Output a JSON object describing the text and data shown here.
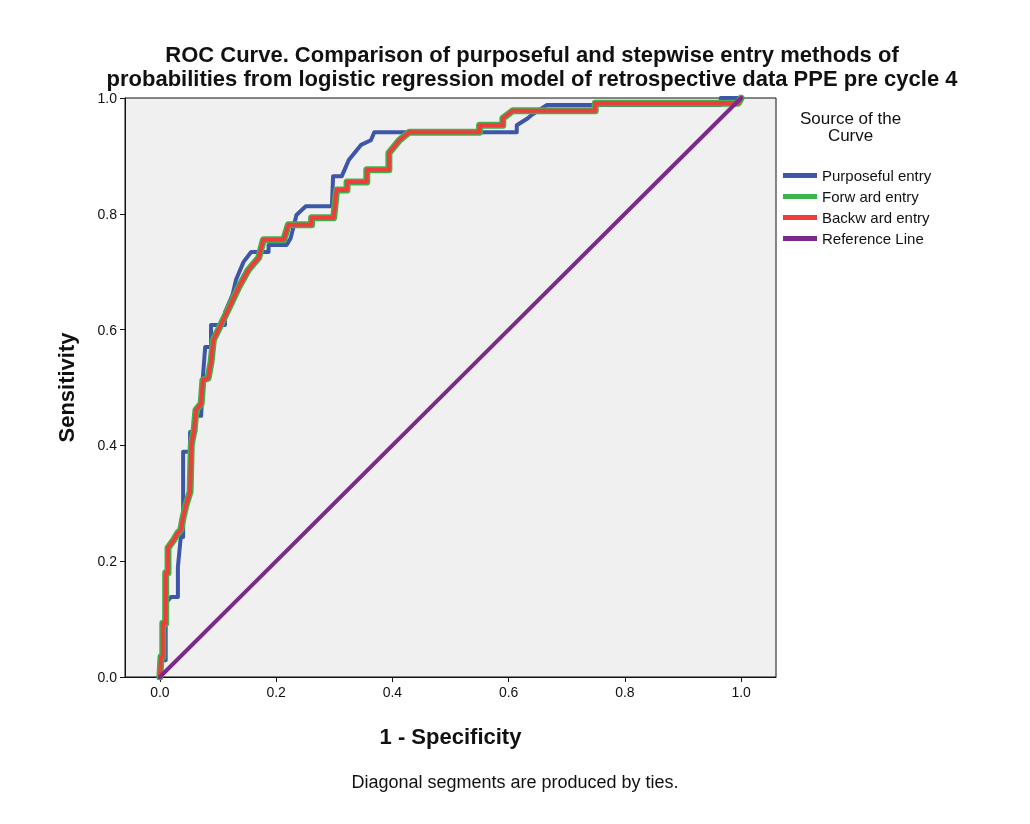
{
  "chart_data": {
    "type": "line",
    "title": "ROC Curve. Comparison of purposeful and stepwise entry methods of\nprobabilities from logistic regression model of retrospective data PPE pre cycle 4",
    "xlabel": "1 - Specificity",
    "ylabel": "Sensitivity",
    "legend_title": "Source of the\nCurve",
    "legend": "top right",
    "grid": false,
    "marker": "none",
    "line_style": "solid",
    "xlim": [
      -0.06,
      1.06
    ],
    "ylim": [
      0,
      1
    ],
    "xticks": [
      {
        "value": 0,
        "label": "0.0"
      },
      {
        "value": 0.2,
        "label": "0.2"
      },
      {
        "value": 0.4,
        "label": "0.4"
      },
      {
        "value": 0.6,
        "label": "0.6"
      },
      {
        "value": 0.8,
        "label": "0.8"
      },
      {
        "value": 1,
        "label": "1.0"
      }
    ],
    "yticks": [
      {
        "value": 0,
        "label": "0.0"
      },
      {
        "value": 0.2,
        "label": "0.2"
      },
      {
        "value": 0.4,
        "label": "0.4"
      },
      {
        "value": 0.6,
        "label": "0.6"
      },
      {
        "value": 0.8,
        "label": "0.8"
      },
      {
        "value": 1,
        "label": "1.0"
      }
    ],
    "annotations": [
      "Diagonal segments are produced by ties."
    ],
    "series": [
      {
        "name": "Purposeful entry",
        "color": "#3e56a8",
        "x": [
          0,
          0,
          0.01,
          0.01,
          0.019,
          0.031,
          0.031,
          0.036,
          0.04,
          0.04,
          0.052,
          0.052,
          0.061,
          0.061,
          0.071,
          0.074,
          0.078,
          0.088,
          0.088,
          0.112,
          0.112,
          0.125,
          0.131,
          0.144,
          0.157,
          0.187,
          0.187,
          0.218,
          0.225,
          0.235,
          0.251,
          0.296,
          0.298,
          0.313,
          0.325,
          0.346,
          0.363,
          0.369,
          0.614,
          0.614,
          0.633,
          0.64,
          0.666,
          0.965,
          0.965,
          1
        ],
        "values": [
          0,
          0.029,
          0.029,
          0.128,
          0.138,
          0.138,
          0.19,
          0.242,
          0.242,
          0.389,
          0.389,
          0.423,
          0.423,
          0.451,
          0.451,
          0.518,
          0.57,
          0.57,
          0.608,
          0.608,
          0.63,
          0.66,
          0.686,
          0.717,
          0.734,
          0.734,
          0.746,
          0.746,
          0.758,
          0.798,
          0.813,
          0.813,
          0.865,
          0.865,
          0.893,
          0.919,
          0.927,
          0.941,
          0.941,
          0.953,
          0.965,
          0.971,
          0.988,
          0.988,
          1,
          1
        ]
      },
      {
        "name": "Forw ard entry",
        "color": "#3cb44a",
        "x": [
          0,
          0.002,
          0.005,
          0.005,
          0.01,
          0.01,
          0.014,
          0.014,
          0.024,
          0.031,
          0.036,
          0.04,
          0.045,
          0.052,
          0.054,
          0.059,
          0.062,
          0.071,
          0.074,
          0.083,
          0.088,
          0.092,
          0.109,
          0.121,
          0.135,
          0.152,
          0.17,
          0.178,
          0.213,
          0.221,
          0.261,
          0.261,
          0.299,
          0.304,
          0.322,
          0.322,
          0.356,
          0.356,
          0.394,
          0.394,
          0.412,
          0.429,
          0.55,
          0.55,
          0.59,
          0.59,
          0.607,
          0.749,
          0.749,
          0.995,
          1
        ],
        "values": [
          0,
          0.035,
          0.035,
          0.093,
          0.093,
          0.18,
          0.18,
          0.223,
          0.237,
          0.249,
          0.254,
          0.276,
          0.297,
          0.32,
          0.401,
          0.427,
          0.461,
          0.472,
          0.513,
          0.516,
          0.544,
          0.582,
          0.617,
          0.642,
          0.672,
          0.703,
          0.724,
          0.755,
          0.755,
          0.781,
          0.781,
          0.793,
          0.793,
          0.841,
          0.841,
          0.855,
          0.855,
          0.876,
          0.876,
          0.905,
          0.927,
          0.941,
          0.941,
          0.953,
          0.953,
          0.965,
          0.978,
          0.978,
          0.991,
          0.991,
          1
        ]
      },
      {
        "name": "Backw ard entry",
        "color": "#f03c3c",
        "x": [
          0,
          0.002,
          0.005,
          0.005,
          0.01,
          0.01,
          0.014,
          0.014,
          0.024,
          0.031,
          0.036,
          0.04,
          0.045,
          0.052,
          0.054,
          0.059,
          0.062,
          0.071,
          0.074,
          0.083,
          0.088,
          0.092,
          0.109,
          0.121,
          0.135,
          0.152,
          0.17,
          0.178,
          0.213,
          0.221,
          0.261,
          0.261,
          0.299,
          0.304,
          0.322,
          0.322,
          0.356,
          0.356,
          0.394,
          0.394,
          0.412,
          0.429,
          0.55,
          0.55,
          0.59,
          0.59,
          0.607,
          0.749,
          0.749,
          0.995,
          1
        ],
        "values": [
          0,
          0.035,
          0.035,
          0.093,
          0.093,
          0.18,
          0.18,
          0.223,
          0.237,
          0.249,
          0.254,
          0.276,
          0.297,
          0.32,
          0.401,
          0.427,
          0.461,
          0.472,
          0.513,
          0.516,
          0.544,
          0.582,
          0.617,
          0.642,
          0.672,
          0.703,
          0.724,
          0.755,
          0.755,
          0.781,
          0.781,
          0.793,
          0.793,
          0.841,
          0.841,
          0.855,
          0.855,
          0.876,
          0.876,
          0.905,
          0.927,
          0.941,
          0.941,
          0.953,
          0.953,
          0.965,
          0.978,
          0.978,
          0.991,
          0.991,
          1
        ]
      },
      {
        "name": "Reference Line",
        "color": "#7b2a8a",
        "x": [
          0,
          1
        ],
        "values": [
          0,
          1
        ]
      }
    ]
  }
}
